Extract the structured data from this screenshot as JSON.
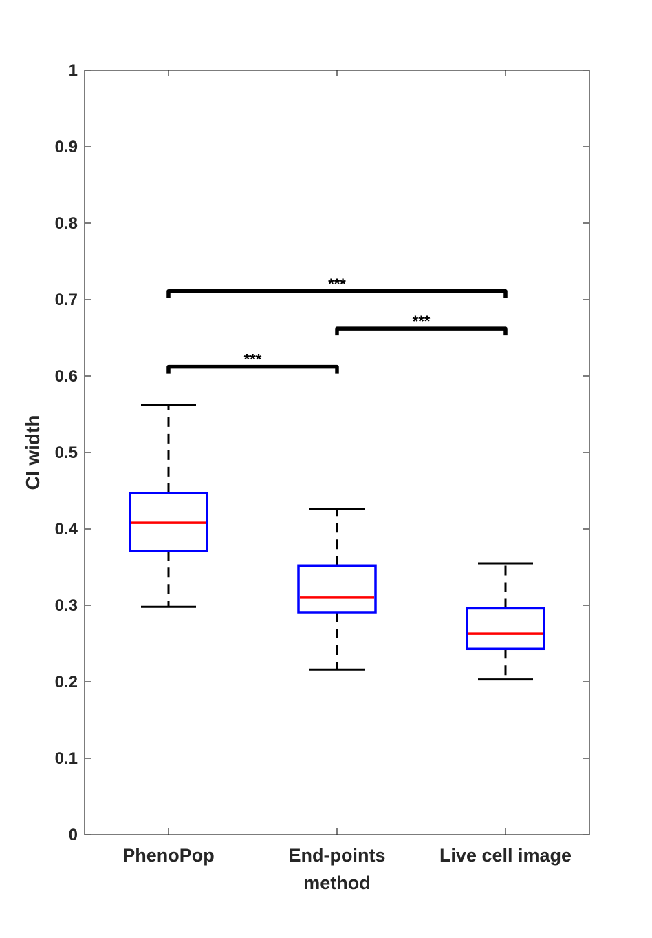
{
  "chart_data": {
    "type": "box",
    "categories": [
      "PhenoPop",
      "End-points\nmethod",
      "Live cell image"
    ],
    "ylabel": "CI width",
    "xlabel": "",
    "ylim": [
      0,
      1
    ],
    "yticks": [
      0,
      0.1,
      0.2,
      0.3,
      0.4,
      0.5,
      0.6,
      0.7,
      0.8,
      0.9,
      1
    ],
    "ytick_labels": [
      "0",
      "0.1",
      "0.2",
      "0.3",
      "0.4",
      "0.5",
      "0.6",
      "0.7",
      "0.8",
      "0.9",
      "1"
    ],
    "grid": false,
    "boxes": [
      {
        "whisker_low": 0.298,
        "q1": 0.371,
        "median": 0.408,
        "q3": 0.447,
        "whisker_high": 0.562
      },
      {
        "whisker_low": 0.216,
        "q1": 0.291,
        "median": 0.31,
        "q3": 0.352,
        "whisker_high": 0.426
      },
      {
        "whisker_low": 0.203,
        "q1": 0.243,
        "median": 0.263,
        "q3": 0.296,
        "whisker_high": 0.355
      }
    ],
    "significance": [
      {
        "from": 0,
        "to": 1,
        "y": 0.612,
        "label": "***"
      },
      {
        "from": 1,
        "to": 2,
        "y": 0.662,
        "label": "***"
      },
      {
        "from": 0,
        "to": 2,
        "y": 0.711,
        "label": "***"
      }
    ],
    "colors": {
      "box": "#0000ff",
      "median": "#ff0000",
      "whisker": "#000000",
      "bracket": "#000000",
      "axis": "#262626"
    }
  }
}
